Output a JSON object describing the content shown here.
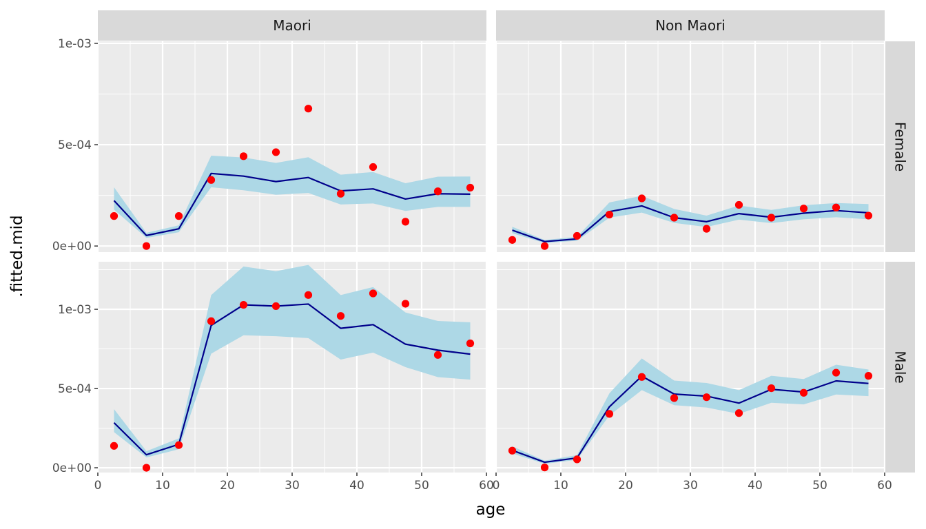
{
  "chart_data": {
    "type": "line",
    "xlabel": "age",
    "ylabel": ".fitted.mid",
    "xlim": [
      0,
      60
    ],
    "ylim": [
      -3e-05,
      0.001
    ],
    "ylim_female": [
      -3e-05,
      0.00101
    ],
    "ylim_male": [
      -3e-05,
      0.0013
    ],
    "x_ticks": [
      0,
      10,
      20,
      30,
      40,
      50,
      60
    ],
    "x_tick_labels": [
      "0",
      "10",
      "20",
      "30",
      "40",
      "50",
      "60"
    ],
    "y_ticks": [
      0,
      0.0005,
      0.001
    ],
    "y_tick_labels": [
      "0e+00",
      "5e-04",
      "1e-03"
    ],
    "grid": true,
    "col_strips": [
      "Maori",
      "Non Maori"
    ],
    "row_strips": [
      "Female",
      "Male"
    ],
    "colors": {
      "panel_bg": "#ebebeb",
      "strip_bg": "#d9d9d9",
      "grid": "#ffffff",
      "ribbon": "#add8e6",
      "line": "#00008b",
      "points": "#ff0000"
    },
    "x": [
      2.5,
      7.5,
      12.5,
      17.5,
      22.5,
      27.5,
      32.5,
      37.5,
      42.5,
      47.5,
      52.5,
      57.5
    ],
    "panels": [
      {
        "col": "Maori",
        "row": "Female",
        "fitted": [
          0.000224,
          5.2e-05,
          8.5e-05,
          0.000358,
          0.000345,
          0.000318,
          0.000338,
          0.000272,
          0.000282,
          0.000232,
          0.000258,
          0.000256
        ],
        "lower": [
          0.00018,
          4e-05,
          6.8e-05,
          0.00029,
          0.000275,
          0.000253,
          0.000262,
          0.000205,
          0.00021,
          0.000173,
          0.000193,
          0.000193
        ],
        "upper": [
          0.00029,
          6.5e-05,
          0.000102,
          0.000446,
          0.000437,
          0.00041,
          0.000438,
          0.000352,
          0.000365,
          0.00031,
          0.000342,
          0.000343
        ],
        "observed": [
          0.000148,
          0.0,
          0.000148,
          0.000326,
          0.000443,
          0.000463,
          0.000678,
          0.000258,
          0.00039,
          0.00012,
          0.00027,
          0.000288
        ]
      },
      {
        "col": "Non Maori",
        "row": "Female",
        "fitted": [
          7.8e-05,
          2.2e-05,
          3.5e-05,
          0.00017,
          0.000198,
          0.00014,
          0.00012,
          0.00016,
          0.000142,
          0.000162,
          0.000175,
          0.000164
        ],
        "lower": [
          6.3e-05,
          1.5e-05,
          2.6e-05,
          0.00014,
          0.000165,
          0.000114,
          9.4e-05,
          0.00013,
          0.000113,
          0.000132,
          0.000142,
          0.000132
        ],
        "upper": [
          9.5e-05,
          3e-05,
          4.5e-05,
          0.000215,
          0.000248,
          0.000183,
          0.00015,
          0.0002,
          0.000178,
          0.000201,
          0.000212,
          0.000207
        ],
        "observed": [
          3e-05,
          0.0,
          5e-05,
          0.000155,
          0.000235,
          0.00014,
          8.5e-05,
          0.000203,
          0.00014,
          0.000185,
          0.00019,
          0.00015
        ]
      },
      {
        "col": "Maori",
        "row": "Male",
        "fitted": [
          0.000284,
          8.2e-05,
          0.000148,
          0.000898,
          0.001028,
          0.00102,
          0.001033,
          0.00088,
          0.000903,
          0.00078,
          0.000742,
          0.000717
        ],
        "lower": [
          0.000225,
          6.5e-05,
          0.000117,
          0.00072,
          0.000836,
          0.00083,
          0.000818,
          0.000683,
          0.000727,
          0.000635,
          0.000572,
          0.000556
        ],
        "upper": [
          0.00037,
          0.000105,
          0.000185,
          0.00109,
          0.00127,
          0.00124,
          0.00128,
          0.00109,
          0.00114,
          0.00098,
          0.000926,
          0.000918
        ],
        "observed": [
          0.000138,
          0.0,
          0.000143,
          0.000925,
          0.001028,
          0.00102,
          0.00109,
          0.000958,
          0.0011,
          0.001035,
          0.000712,
          0.000785
        ]
      },
      {
        "col": "Non Maori",
        "row": "Male",
        "fitted": [
          0.00011,
          3.5e-05,
          6.2e-05,
          0.000385,
          0.000578,
          0.000465,
          0.000452,
          0.000408,
          0.000495,
          0.000478,
          0.000548,
          0.000532
        ],
        "lower": [
          9e-05,
          2.5e-05,
          5e-05,
          0.00033,
          0.00049,
          0.000395,
          0.00038,
          0.00034,
          0.00041,
          0.0004,
          0.000462,
          0.000452
        ],
        "upper": [
          0.000135,
          4.5e-05,
          8e-05,
          0.00047,
          0.00069,
          0.00055,
          0.000535,
          0.00049,
          0.00058,
          0.00056,
          0.00065,
          0.00062
        ],
        "observed": [
          0.000108,
          2e-06,
          5.3e-05,
          0.00034,
          0.000573,
          0.00044,
          0.000445,
          0.000345,
          0.000502,
          0.000473,
          0.0006,
          0.00058
        ]
      }
    ]
  }
}
